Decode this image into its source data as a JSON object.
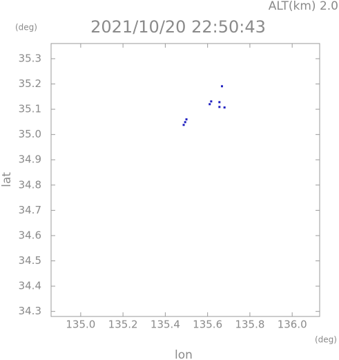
{
  "chart_data": {
    "type": "scatter",
    "title": "2021/10/20 22:50:43",
    "annotation": "ALT(km) 2.0",
    "xlabel": "lon",
    "ylabel": "lat",
    "xunit": "(deg)",
    "yunit": "(deg)",
    "color": "#2020c0",
    "x": [
      135.668,
      135.656,
      135.617,
      135.61,
      135.656,
      135.68,
      135.5,
      135.494,
      135.487
    ],
    "values": [
      35.191,
      35.128,
      35.131,
      35.12,
      35.109,
      35.107,
      35.06,
      35.049,
      35.038
    ],
    "xlim": [
      134.86,
      136.13
    ],
    "ylim": [
      34.28,
      35.36
    ],
    "xticks": [
      {
        "value": 135.0,
        "label": "135.0"
      },
      135.2,
      135.4,
      135.6,
      135.8,
      {
        "value": 136.0,
        "label": "136.0"
      }
    ],
    "yticks": [
      34.3,
      34.4,
      34.5,
      34.6,
      34.7,
      34.8,
      34.9,
      {
        "value": 35.0,
        "label": "35.0"
      },
      35.1,
      35.2,
      35.3
    ]
  }
}
